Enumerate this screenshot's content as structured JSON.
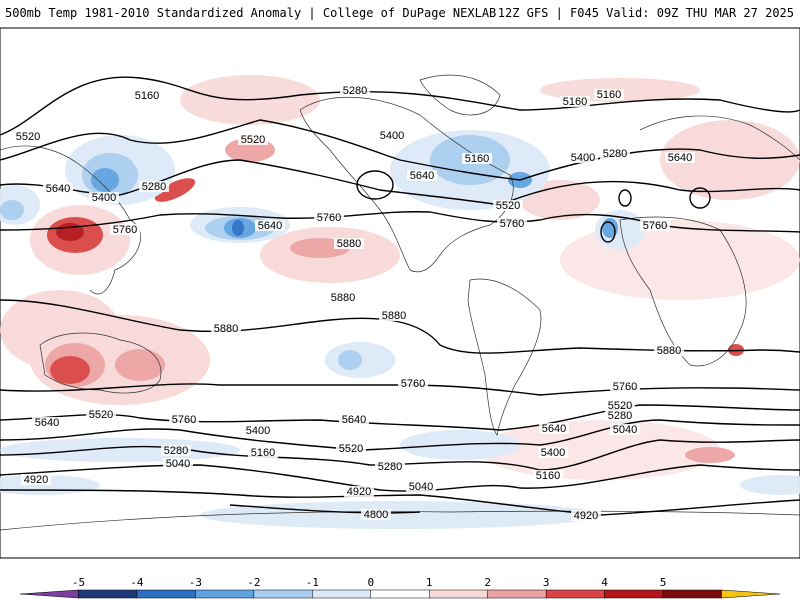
{
  "header": {
    "title": "500mb Temp 1981-2010 Standardized Anomaly | College of DuPage NEXLAB",
    "run": "12Z GFS | F045 Valid: 09Z THU MAR 27 2025"
  },
  "contour_labels": [
    "5160",
    "5280",
    "5400",
    "5520",
    "5640",
    "5760",
    "5880",
    "5040",
    "4920",
    "4800"
  ],
  "colorbar": {
    "labels": [
      "-5",
      "-4",
      "-3",
      "-2",
      "-1",
      "0",
      "1",
      "2",
      "3",
      "4",
      "5"
    ],
    "colors": [
      "#7b3fa0",
      "#1f3a7a",
      "#2b6fc4",
      "#5ea3e0",
      "#a9cdf0",
      "#dde9f7",
      "#ffffff",
      "#f8d9d9",
      "#eda3a3",
      "#d94545",
      "#b3151a",
      "#7a0a0e",
      "#f3c416"
    ]
  }
}
